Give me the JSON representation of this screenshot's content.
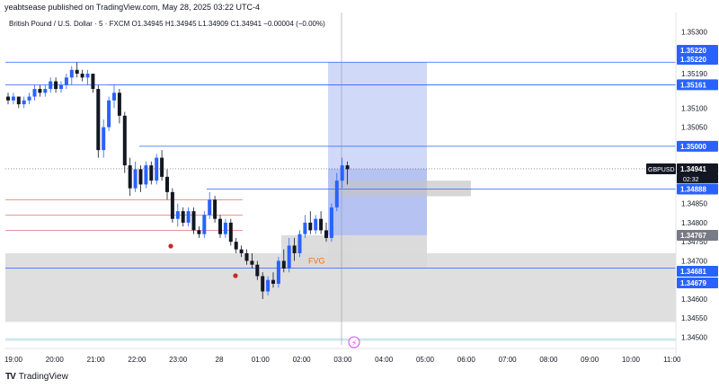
{
  "header": {
    "publisher_line": "yeabtsease published on TradingView.com, May 28, 2025 03:22 UTC-4",
    "legend_line": "British Pound / U.S. Dollar · 5 · FXCM  O1.34945  H1.34945  L1.34909  C1.34941  −0.00004 (−0.00%)"
  },
  "footer": {
    "brand": "TradingView",
    "logo": "TV"
  },
  "colors": {
    "bull": "#2962ff",
    "bear": "#131722",
    "hline": "#2962ff",
    "hline_red": "#d32f2f",
    "zone_blue_light": "#c8d2f7",
    "zone_blue_dark": "#a8b7f0",
    "zone_gray": "#d9d9d9",
    "fvg_text": "#ff6d00",
    "dot_red": "#c62828"
  },
  "chart_data": {
    "type": "candlestick",
    "symbol": "GBPUSD",
    "timeframe": "5",
    "ylim": [
      1.3448,
      1.3535
    ],
    "x_ticks": [
      "19:00",
      "20:00",
      "21:00",
      "22:00",
      "23:00",
      "28",
      "01:00",
      "02:00",
      "03:00",
      "04:00",
      "05:00",
      "06:00",
      "07:00",
      "08:00",
      "09:00",
      "10:00",
      "11:00"
    ],
    "y_ticks": [
      {
        "label": "1.35300",
        "value": 1.353
      },
      {
        "label": "1.35190",
        "value": 1.3519
      },
      {
        "label": "1.35100",
        "value": 1.351
      },
      {
        "label": "1.35050",
        "value": 1.3505
      },
      {
        "label": "1.34850",
        "value": 1.3485
      },
      {
        "label": "1.34800",
        "value": 1.348
      },
      {
        "label": "1.34750",
        "value": 1.3475
      },
      {
        "label": "1.34700",
        "value": 1.347
      },
      {
        "label": "1.34600",
        "value": 1.346
      },
      {
        "label": "1.34550",
        "value": 1.3455
      },
      {
        "label": "1.34500",
        "value": 1.345
      }
    ],
    "price_labels": [
      {
        "label": "1.35220",
        "value": 1.3522,
        "style": "blue"
      },
      {
        "label": "1.35220",
        "value": 1.3521,
        "style": "blue"
      },
      {
        "label": "1.35161",
        "value": 1.35161,
        "style": "blue"
      },
      {
        "label": "1.35000",
        "value": 1.35,
        "style": "blue"
      },
      {
        "label": "1.34941",
        "value": 1.34941,
        "style": "dark",
        "symbol": "GBPUSD",
        "countdown": "02:32"
      },
      {
        "label": "1.34888",
        "value": 1.34888,
        "style": "blue"
      },
      {
        "label": "1.34767",
        "value": 1.34767,
        "style": "gray"
      },
      {
        "label": "1.34681",
        "value": 1.34681,
        "style": "blue"
      },
      {
        "label": "1.34679",
        "value": 1.34679,
        "style": "blue"
      }
    ],
    "annotations": [
      {
        "label": "FVG"
      }
    ],
    "candles": [
      [
        1.3513,
        1.3514,
        1.3511,
        1.3512
      ],
      [
        1.3512,
        1.3514,
        1.3511,
        1.3513
      ],
      [
        1.3513,
        1.3513,
        1.351,
        1.3511
      ],
      [
        1.3511,
        1.3513,
        1.351,
        1.3512
      ],
      [
        1.3512,
        1.3514,
        1.3511,
        1.3513
      ],
      [
        1.3513,
        1.3516,
        1.3512,
        1.3515
      ],
      [
        1.3515,
        1.3516,
        1.3513,
        1.3514
      ],
      [
        1.3514,
        1.3516,
        1.3513,
        1.3515
      ],
      [
        1.3515,
        1.3518,
        1.3514,
        1.3517
      ],
      [
        1.3517,
        1.3518,
        1.3514,
        1.3515
      ],
      [
        1.3515,
        1.3517,
        1.3514,
        1.3516
      ],
      [
        1.3516,
        1.3519,
        1.3515,
        1.3518
      ],
      [
        1.3518,
        1.3521,
        1.3516,
        1.352
      ],
      [
        1.352,
        1.3522,
        1.3518,
        1.3519
      ],
      [
        1.3519,
        1.352,
        1.3517,
        1.3518
      ],
      [
        1.3518,
        1.352,
        1.3516,
        1.3519
      ],
      [
        1.3519,
        1.3519,
        1.3514,
        1.3515
      ],
      [
        1.3515,
        1.3516,
        1.3497,
        1.3499
      ],
      [
        1.3499,
        1.3507,
        1.3497,
        1.3505
      ],
      [
        1.3505,
        1.3513,
        1.3504,
        1.3512
      ],
      [
        1.3512,
        1.3516,
        1.351,
        1.3514
      ],
      [
        1.3514,
        1.3515,
        1.3506,
        1.3508
      ],
      [
        1.3508,
        1.3509,
        1.3493,
        1.3495
      ],
      [
        1.3495,
        1.3497,
        1.3487,
        1.3489
      ],
      [
        1.3489,
        1.3496,
        1.3488,
        1.3494
      ],
      [
        1.3494,
        1.3495,
        1.3488,
        1.349
      ],
      [
        1.349,
        1.3496,
        1.3489,
        1.3495
      ],
      [
        1.3495,
        1.3496,
        1.349,
        1.3491
      ],
      [
        1.3491,
        1.3498,
        1.349,
        1.3497
      ],
      [
        1.3497,
        1.3499,
        1.3491,
        1.3492
      ],
      [
        1.3492,
        1.3494,
        1.3486,
        1.3488
      ],
      [
        1.3488,
        1.3489,
        1.348,
        1.3481
      ],
      [
        1.3481,
        1.3485,
        1.3479,
        1.3483
      ],
      [
        1.3483,
        1.3484,
        1.3479,
        1.348
      ],
      [
        1.348,
        1.3484,
        1.3479,
        1.3483
      ],
      [
        1.3483,
        1.3484,
        1.3477,
        1.3478
      ],
      [
        1.3478,
        1.3479,
        1.3476,
        1.3477
      ],
      [
        1.3477,
        1.3483,
        1.3476,
        1.3482
      ],
      [
        1.3482,
        1.3488,
        1.3481,
        1.3486
      ],
      [
        1.3486,
        1.3487,
        1.348,
        1.3481
      ],
      [
        1.3481,
        1.3482,
        1.3476,
        1.3477
      ],
      [
        1.3477,
        1.3481,
        1.3476,
        1.348
      ],
      [
        1.348,
        1.3481,
        1.3474,
        1.3475
      ],
      [
        1.3475,
        1.3476,
        1.3472,
        1.3473
      ],
      [
        1.3473,
        1.3474,
        1.3471,
        1.3472
      ],
      [
        1.3472,
        1.3473,
        1.3469,
        1.347
      ],
      [
        1.347,
        1.3472,
        1.3468,
        1.3469
      ],
      [
        1.3469,
        1.347,
        1.3465,
        1.3466
      ],
      [
        1.3466,
        1.3467,
        1.346,
        1.3462
      ],
      [
        1.3462,
        1.3466,
        1.3461,
        1.3465
      ],
      [
        1.3465,
        1.3467,
        1.3463,
        1.3464
      ],
      [
        1.3464,
        1.3471,
        1.3463,
        1.347
      ],
      [
        1.347,
        1.3473,
        1.3467,
        1.3468
      ],
      [
        1.3468,
        1.3476,
        1.3467,
        1.3474
      ],
      [
        1.3474,
        1.3476,
        1.347,
        1.3472
      ],
      [
        1.3472,
        1.3478,
        1.3471,
        1.3477
      ],
      [
        1.3477,
        1.3482,
        1.3476,
        1.348
      ],
      [
        1.348,
        1.3483,
        1.3477,
        1.3478
      ],
      [
        1.3478,
        1.3482,
        1.3477,
        1.3481
      ],
      [
        1.3481,
        1.3483,
        1.3477,
        1.3478
      ],
      [
        1.3478,
        1.348,
        1.3475,
        1.3476
      ],
      [
        1.3476,
        1.3485,
        1.3475,
        1.3484
      ],
      [
        1.3484,
        1.3493,
        1.3483,
        1.3491
      ],
      [
        1.3491,
        1.3497,
        1.3489,
        1.3495
      ],
      [
        1.3495,
        1.3496,
        1.349,
        1.3494
      ]
    ]
  }
}
